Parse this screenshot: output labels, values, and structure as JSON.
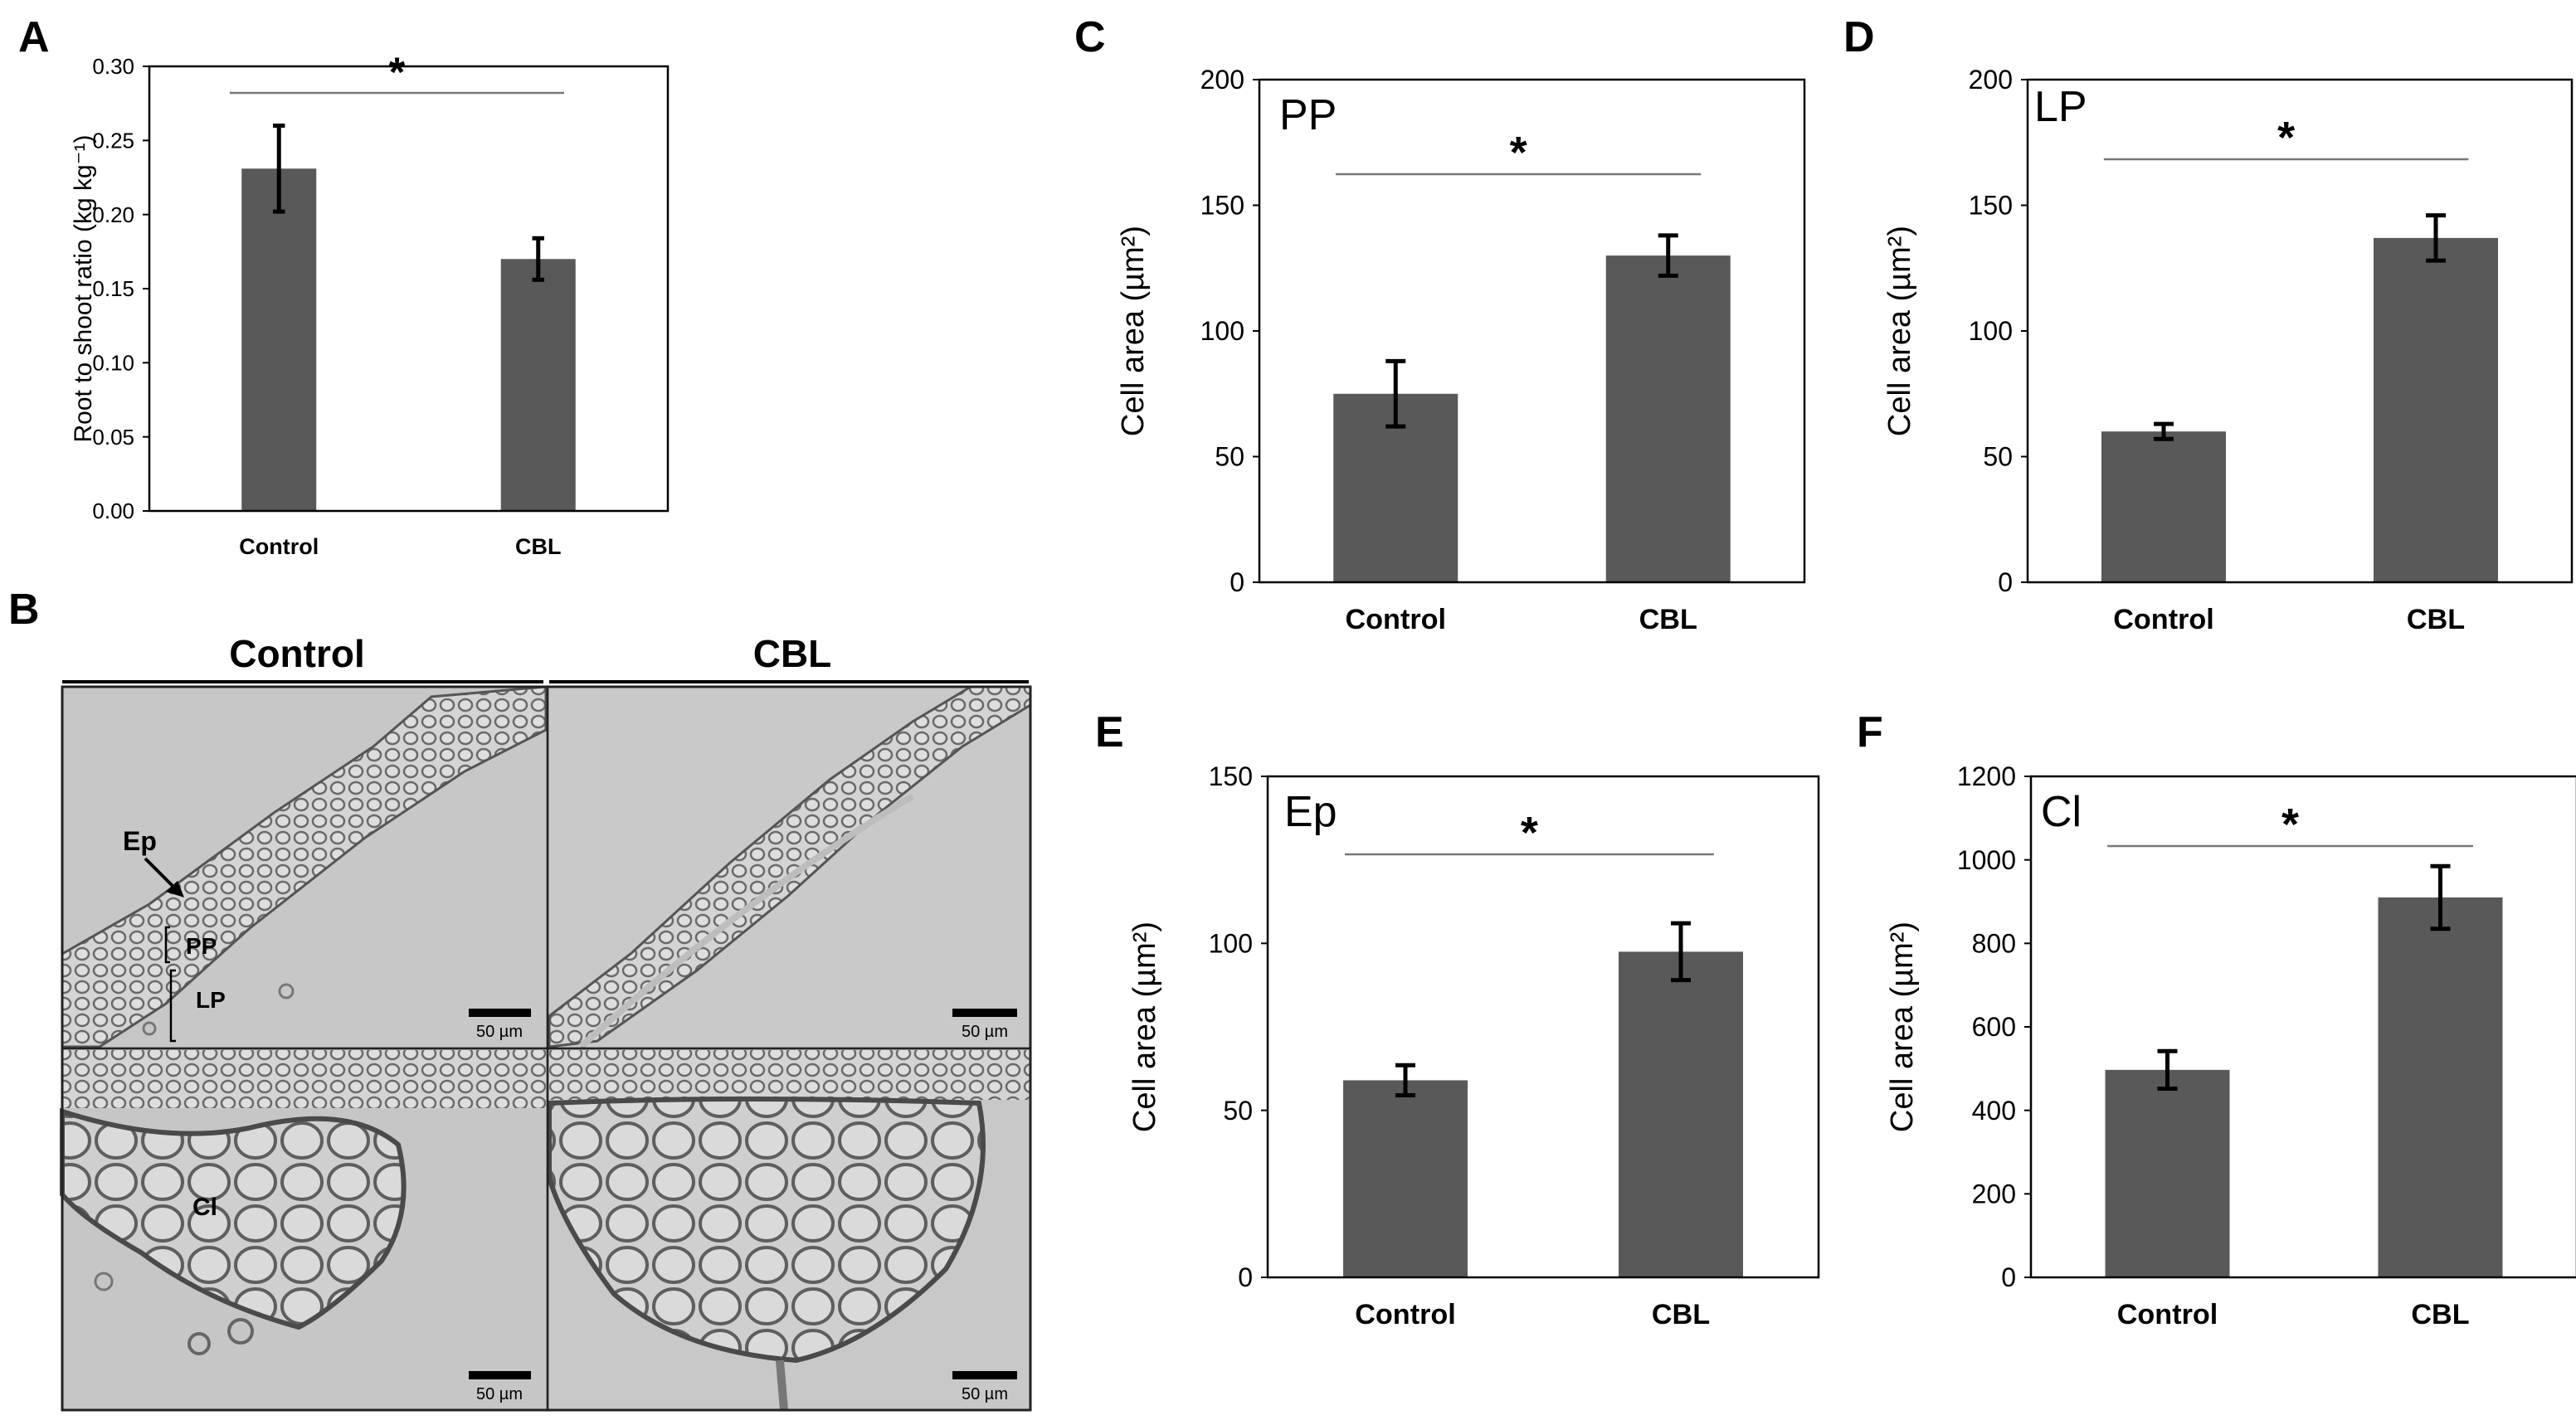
{
  "panel_letters": {
    "A": "A",
    "B": "B",
    "C": "C",
    "D": "D",
    "E": "E",
    "F": "F"
  },
  "micrograph": {
    "col_headers": [
      "Control",
      "CBL"
    ],
    "labels": {
      "ep": "Ep",
      "pp": "PP",
      "lp": "LP",
      "cl": "Cl"
    },
    "scale_bar": "50 µm",
    "colors": {
      "background": "#c9c9c9",
      "cell_wall": "#5e5e5e"
    }
  },
  "chart_data": [
    {
      "id": "A",
      "type": "bar",
      "title": "",
      "categories": [
        "Control",
        "CBL"
      ],
      "values": [
        0.231,
        0.17
      ],
      "errors": [
        0.029,
        0.014
      ],
      "ylabel": "Root to shoot ratio (kg kg⁻¹)",
      "xlabel": "",
      "ylim": [
        0,
        0.3
      ],
      "yticks": [
        "0.00",
        "0.05",
        "0.10",
        "0.15",
        "0.20",
        "0.25",
        "0.30"
      ],
      "inset_label": "",
      "significance": "*",
      "bar_color": "#595959"
    },
    {
      "id": "C",
      "type": "bar",
      "title": "",
      "categories": [
        "Control",
        "CBL"
      ],
      "values": [
        75,
        130
      ],
      "errors": [
        13,
        8
      ],
      "ylabel": "Cell area (µm²)",
      "xlabel": "",
      "ylim": [
        0,
        200
      ],
      "yticks": [
        "0",
        "50",
        "100",
        "150",
        "200"
      ],
      "inset_label": "PP",
      "significance": "*",
      "bar_color": "#595959"
    },
    {
      "id": "D",
      "type": "bar",
      "title": "",
      "categories": [
        "Control",
        "CBL"
      ],
      "values": [
        60,
        137
      ],
      "errors": [
        3,
        9
      ],
      "ylabel": "Cell area (µm²)",
      "xlabel": "",
      "ylim": [
        0,
        200
      ],
      "yticks": [
        "0",
        "50",
        "100",
        "150",
        "200"
      ],
      "inset_label": "LP",
      "significance": "*",
      "bar_color": "#595959"
    },
    {
      "id": "E",
      "type": "bar",
      "title": "",
      "categories": [
        "Control",
        "CBL"
      ],
      "values": [
        59,
        97.5
      ],
      "errors": [
        4.5,
        8.5
      ],
      "ylabel": "Cell area (µm²)",
      "xlabel": "",
      "ylim": [
        0,
        150
      ],
      "yticks": [
        "0",
        "50",
        "100",
        "150"
      ],
      "inset_label": "Ep",
      "significance": "*",
      "bar_color": "#595959"
    },
    {
      "id": "F",
      "type": "bar",
      "title": "",
      "categories": [
        "Control",
        "CBL"
      ],
      "values": [
        497,
        910
      ],
      "errors": [
        45,
        75
      ],
      "ylabel": "Cell area (µm²)",
      "xlabel": "",
      "ylim": [
        0,
        1200
      ],
      "yticks": [
        "0",
        "200",
        "400",
        "600",
        "800",
        "1000",
        "1200"
      ],
      "inset_label": "Cl",
      "significance": "*",
      "bar_color": "#595959"
    }
  ]
}
